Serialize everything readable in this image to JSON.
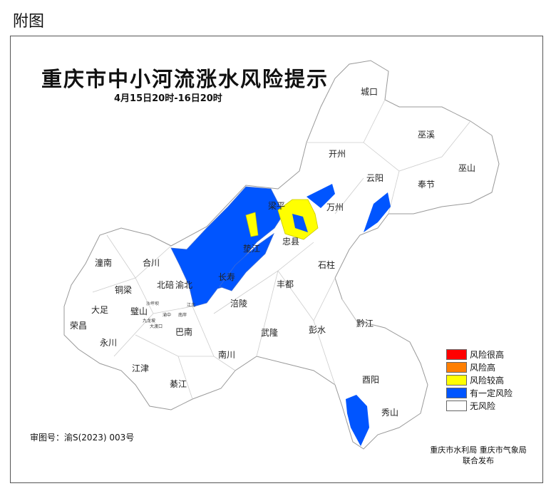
{
  "figure_label": "附图",
  "title": "重庆市中小河流涨水风险提示",
  "subtitle": "4月15日20时-16日20时",
  "districts": [
    "城口",
    "巫溪",
    "开州",
    "巫山",
    "云阳",
    "奉节",
    "万州",
    "梁平",
    "忠县",
    "石柱",
    "垫江",
    "长寿",
    "丰都",
    "渝北",
    "北碚",
    "合川",
    "潼南",
    "铜梁",
    "大足",
    "璧山",
    "荣昌",
    "永川",
    "涪陵",
    "巴南",
    "武隆",
    "彭水",
    "黔江",
    "江津",
    "南川",
    "綦江",
    "酉阳",
    "秀山"
  ],
  "small_districts": [
    "沙坪坝",
    "江北",
    "渝中",
    "南岸",
    "九龙坡",
    "大渡口"
  ],
  "legend": [
    {
      "label": "风险很高",
      "color": "#ff0000"
    },
    {
      "label": "风险高",
      "color": "#ff7f00"
    },
    {
      "label": "风险较高",
      "color": "#ffff00"
    },
    {
      "label": "有一定风险",
      "color": "#0055ff"
    },
    {
      "label": "无风险",
      "color": "#ffffff"
    }
  ],
  "review_number": "审图号：渝S(2023) 003号",
  "issuer_line1": "重庆市水利局 重庆市气象局",
  "issuer_line2": "联合发布"
}
